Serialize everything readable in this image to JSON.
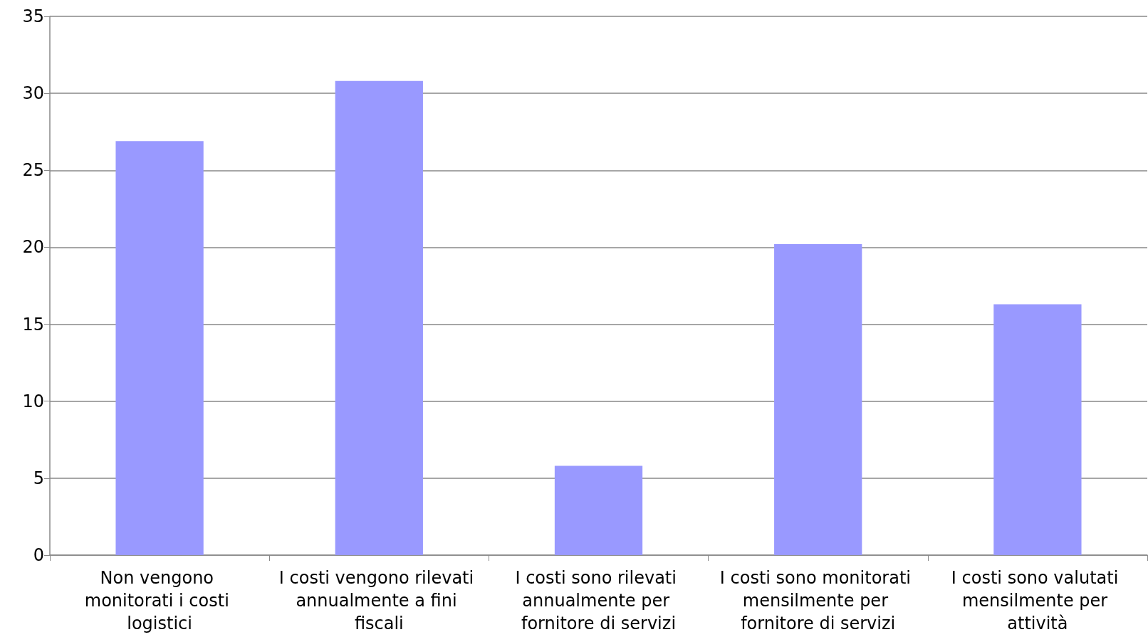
{
  "chart_data": {
    "type": "bar",
    "categories": [
      "Non vengono monitorati i costi logistici",
      "I costi vengono rilevati annualmente a fini fiscali",
      "I costi sono rilevati annualmente per fornitore di servizi",
      "I costi sono monitorati mensilmente per fornitore di servizi",
      "I costi sono valutati mensilmente per attività"
    ],
    "values": [
      26.9,
      30.8,
      5.8,
      20.2,
      16.3
    ],
    "color": "#9999ff",
    "ylim": [
      0,
      35
    ],
    "yticks": [
      0,
      5,
      10,
      15,
      20,
      25,
      30,
      35
    ],
    "grid": true
  }
}
